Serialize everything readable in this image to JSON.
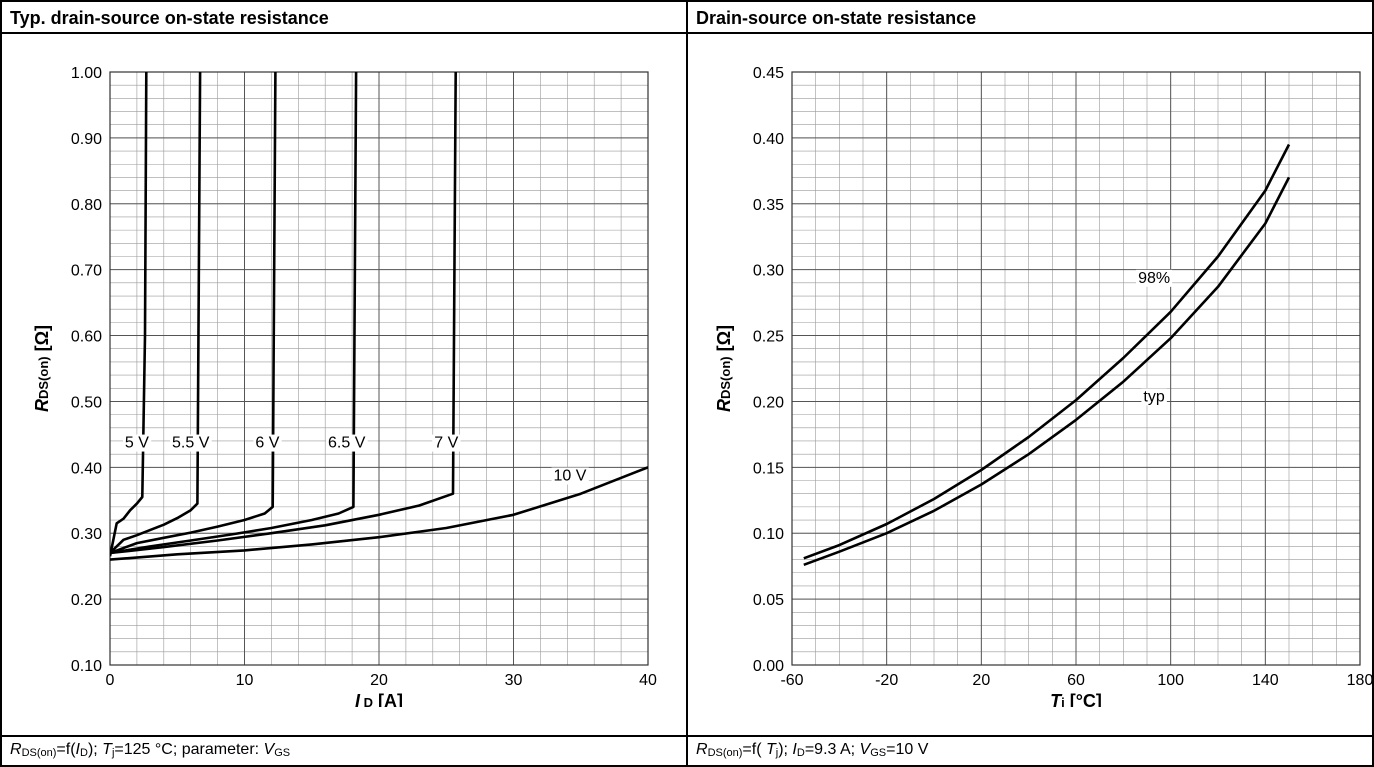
{
  "left": {
    "title": "Typ. drain-source on-state resistance",
    "footer": {
      "r_sym": "R",
      "r_sub": "DS(on)",
      "eq_open": "=f(",
      "id_sym": "I",
      "id_sub": "D",
      "mid": "); ",
      "tj_sym": "T",
      "tj_sub": "j",
      "mid2": "=125 °C; parameter: ",
      "vgs_sym": "V",
      "vgs_sub": "GS"
    }
  },
  "right": {
    "title": "Drain-source on-state resistance",
    "footer": {
      "r_sym": "R",
      "r_sub": "DS(on)",
      "eq_open": "=f( ",
      "tj_sym": "T",
      "tj_sub": "j",
      "mid": "); ",
      "id_sym": "I",
      "id_sub": "D",
      "mid2": "=9.3 A; ",
      "vgs_sym": "V",
      "vgs_sub": "GS",
      "tail": "=10 V"
    }
  },
  "chart_data": [
    {
      "type": "line",
      "title": "Typ. drain-source on-state resistance",
      "xlabel": "I D [A]",
      "ylabel": "RDS(on) [Ω]",
      "xlim": [
        0,
        40
      ],
      "ylim": [
        0.1,
        1.0
      ],
      "xticks": [
        0,
        10,
        20,
        30,
        40
      ],
      "xtick_labels": [
        "0",
        "10",
        "20",
        "30",
        "40"
      ],
      "yticks": [
        0.1,
        0.2,
        0.3,
        0.4,
        0.5,
        0.6,
        0.7,
        0.8,
        0.9,
        1.0
      ],
      "ytick_labels": [
        "0.10",
        "0.20",
        "0.30",
        "0.40",
        "0.50",
        "0.60",
        "0.70",
        "0.80",
        "0.90",
        "1.00"
      ],
      "grid": true,
      "series": [
        {
          "name": "5 V",
          "label_at": [
            2.0,
            0.43
          ],
          "x": [
            0,
            0.5,
            1.0,
            1.5,
            2.0,
            2.4,
            2.6,
            2.7
          ],
          "y": [
            0.265,
            0.315,
            0.322,
            0.335,
            0.345,
            0.355,
            0.6,
            1.0
          ]
        },
        {
          "name": "5.5 V",
          "label_at": [
            6.0,
            0.43
          ],
          "x": [
            0,
            1,
            2,
            3,
            4,
            5,
            6,
            6.5,
            6.7
          ],
          "y": [
            0.27,
            0.29,
            0.297,
            0.305,
            0.313,
            0.323,
            0.335,
            0.345,
            1.0
          ]
        },
        {
          "name": "6 V",
          "label_at": [
            11.7,
            0.43
          ],
          "x": [
            0,
            2,
            4,
            6,
            8,
            10,
            11.5,
            12.1,
            12.3
          ],
          "y": [
            0.27,
            0.285,
            0.293,
            0.301,
            0.31,
            0.32,
            0.33,
            0.34,
            1.0
          ]
        },
        {
          "name": "6.5 V",
          "label_at": [
            17.6,
            0.43
          ],
          "x": [
            0,
            3,
            6,
            9,
            12,
            15,
            17,
            18.1,
            18.3
          ],
          "y": [
            0.27,
            0.28,
            0.289,
            0.298,
            0.308,
            0.32,
            0.33,
            0.34,
            1.0
          ]
        },
        {
          "name": "7 V",
          "label_at": [
            25.0,
            0.43
          ],
          "x": [
            0,
            4,
            8,
            12,
            16,
            20,
            23,
            25.5,
            25.7
          ],
          "y": [
            0.27,
            0.279,
            0.289,
            0.3,
            0.312,
            0.328,
            0.342,
            0.36,
            1.0
          ]
        },
        {
          "name": "10 V",
          "label_at": [
            34.2,
            0.38
          ],
          "x": [
            0,
            5,
            10,
            15,
            20,
            25,
            30,
            35,
            40
          ],
          "y": [
            0.26,
            0.268,
            0.274,
            0.283,
            0.294,
            0.308,
            0.328,
            0.36,
            0.4
          ]
        }
      ]
    },
    {
      "type": "line",
      "title": "Drain-source on-state resistance",
      "xlabel": "Tj [°C]",
      "ylabel": "RDS(on) [Ω]",
      "xlim": [
        -60,
        180
      ],
      "ylim": [
        0.0,
        0.45
      ],
      "xticks": [
        -60,
        -20,
        20,
        60,
        100,
        140,
        180
      ],
      "xtick_labels": [
        "-60",
        "-20",
        "20",
        "60",
        "100",
        "140",
        "180"
      ],
      "yticks": [
        0.0,
        0.05,
        0.1,
        0.15,
        0.2,
        0.25,
        0.3,
        0.35,
        0.4,
        0.45
      ],
      "ytick_labels": [
        "0.00",
        "0.05",
        "0.10",
        "0.15",
        "0.20",
        "0.25",
        "0.30",
        "0.35",
        "0.40",
        "0.45"
      ],
      "grid": true,
      "series": [
        {
          "name": "98%",
          "label_at": [
            93,
            0.29
          ],
          "x": [
            -55,
            -40,
            -20,
            0,
            20,
            40,
            60,
            80,
            100,
            120,
            140,
            150
          ],
          "y": [
            0.081,
            0.091,
            0.107,
            0.126,
            0.148,
            0.173,
            0.201,
            0.233,
            0.268,
            0.31,
            0.36,
            0.395
          ]
        },
        {
          "name": "typ",
          "label_at": [
            93,
            0.2
          ],
          "x": [
            -55,
            -40,
            -20,
            0,
            20,
            40,
            60,
            80,
            100,
            120,
            140,
            150
          ],
          "y": [
            0.076,
            0.086,
            0.1,
            0.117,
            0.137,
            0.16,
            0.186,
            0.215,
            0.248,
            0.287,
            0.335,
            0.37
          ]
        }
      ]
    }
  ]
}
